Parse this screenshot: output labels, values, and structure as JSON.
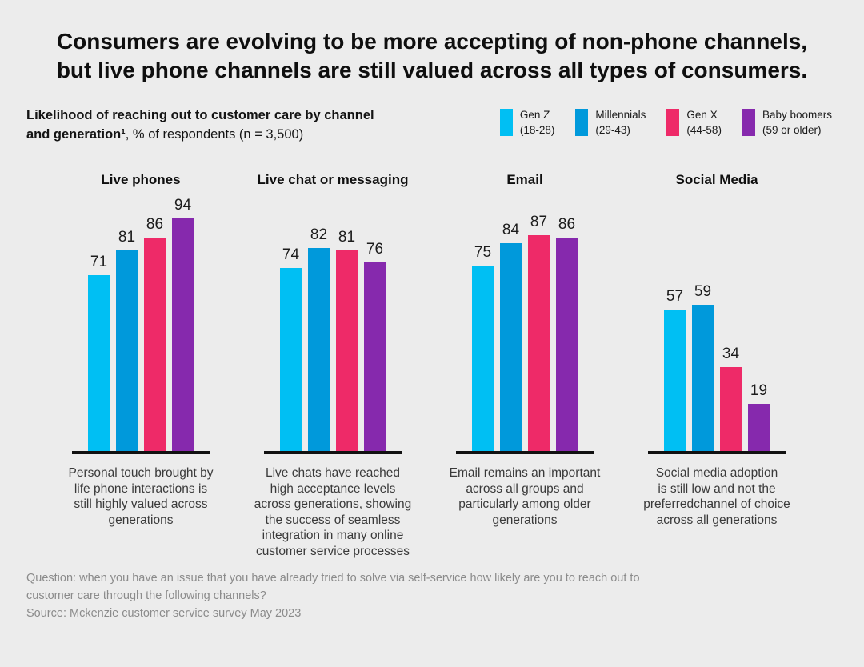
{
  "title": {
    "text": "Consumers are evolving to be more accepting of non-phone channels,\nbut live phone channels are still valued across all types of consumers."
  },
  "subtitle": {
    "bold_line1": "Likelihood of reaching out to customer care by channel",
    "bold_line2": "and generation¹",
    "rest_line2": ", % of respondents (n = 3,500)"
  },
  "legend": [
    {
      "name": "Gen Z",
      "range": "(18-28)",
      "color": "#00BFF3"
    },
    {
      "name": "Millennials",
      "range": "(29-43)",
      "color": "#0099DB"
    },
    {
      "name": "Gen X",
      "range": "(44-58)",
      "color": "#EE2A68"
    },
    {
      "name": "Baby boomers",
      "range": "(59 or older)",
      "color": "#8629AD"
    }
  ],
  "chart_data": {
    "type": "bar",
    "title": "Likelihood of reaching out to customer care by channel and generation, % of respondents (n = 3,500)",
    "ylim": [
      0,
      100
    ],
    "grid": false,
    "value_labels": true,
    "legend_position": "top-right",
    "series_names": [
      "Gen Z (18-28)",
      "Millennials (29-43)",
      "Gen X (44-58)",
      "Baby boomers (59 or older)"
    ],
    "groups": [
      {
        "title": "Live phones",
        "values": [
          71,
          81,
          86,
          94
        ],
        "caption": "Personal touch brought by\nlife phone interactions is\nstill highly valued across\ngenerations"
      },
      {
        "title": "Live chat or messaging",
        "values": [
          74,
          82,
          81,
          76
        ],
        "caption": "Live chats have reached\nhigh acceptance levels\nacross generations, showing\nthe success of seamless\nintegration in many online\ncustomer service processes"
      },
      {
        "title": "Email",
        "values": [
          75,
          84,
          87,
          86
        ],
        "caption": "Email remains an important\nacross all groups and\nparticularly among older\ngenerations"
      },
      {
        "title": "Social Media",
        "values": [
          57,
          59,
          34,
          19
        ],
        "caption": "Social media adoption\nis still low and not the\npreferredchannel of choice\nacross all generations"
      }
    ]
  },
  "footer": {
    "question": "Question: when you have an issue that you have already tried to solve via self-service how likely are you to reach out to\ncustomer care through the following channels?",
    "source": "Source: Mckenzie customer service survey May 2023"
  }
}
